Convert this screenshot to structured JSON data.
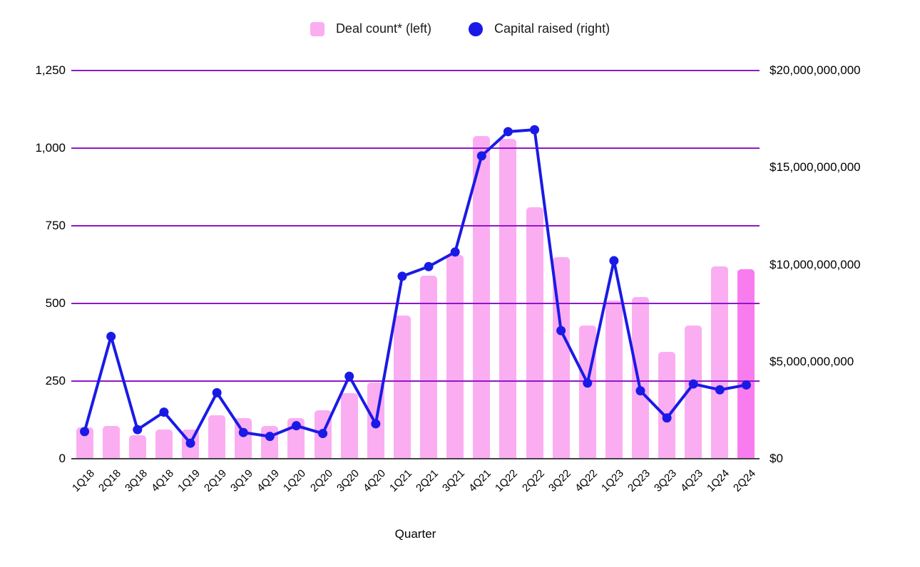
{
  "legend": {
    "items": [
      {
        "label": "Deal count* (left)",
        "marker": "square"
      },
      {
        "label": "Capital raised (right)",
        "marker": "circle"
      }
    ]
  },
  "chart_data": {
    "type": "combo",
    "title": "",
    "xlabel": "Quarter",
    "legend_position": "top",
    "grid": true,
    "grid_color": "#9117C9",
    "axis_line_color": "#424242",
    "categories": [
      "1Q18",
      "2Q18",
      "3Q18",
      "4Q18",
      "1Q19",
      "2Q19",
      "3Q19",
      "4Q19",
      "1Q20",
      "2Q20",
      "3Q20",
      "4Q20",
      "1Q21",
      "2Q21",
      "3Q21",
      "4Q21",
      "1Q22",
      "2Q22",
      "3Q22",
      "4Q22",
      "1Q23",
      "2Q23",
      "3Q23",
      "4Q23",
      "1Q24",
      "2Q24"
    ],
    "series": [
      {
        "name": "Deal count* (left)",
        "type": "bar",
        "axis": "left",
        "color": "#FBADF2",
        "highlight_color": "#F97CEE",
        "highlight_index": 25,
        "values": [
          100,
          105,
          75,
          95,
          95,
          140,
          130,
          105,
          130,
          155,
          210,
          245,
          460,
          590,
          655,
          1040,
          1030,
          810,
          650,
          430,
          510,
          520,
          345,
          430,
          620,
          610
        ]
      },
      {
        "name": "Capital raised (right)",
        "type": "line",
        "axis": "right",
        "color": "#1A1AE6",
        "values": [
          1400000000,
          6300000000,
          1500000000,
          2400000000,
          800000000,
          3400000000,
          1350000000,
          1150000000,
          1700000000,
          1300000000,
          4250000000,
          1800000000,
          9400000000,
          9900000000,
          10650000000,
          15600000000,
          16850000000,
          16950000000,
          6600000000,
          3900000000,
          10200000000,
          3500000000,
          2100000000,
          3850000000,
          3550000000,
          3800000000
        ]
      }
    ],
    "left_axis": {
      "range": [
        0,
        1250
      ],
      "ticks": [
        "0",
        "250",
        "500",
        "750",
        "1,000",
        "1,250"
      ]
    },
    "right_axis": {
      "range": [
        0,
        20000000000
      ],
      "ticks": [
        "$0",
        "$5,000,000,000",
        "$10,000,000,000",
        "$15,000,000,000",
        "$20,000,000,000"
      ]
    }
  }
}
